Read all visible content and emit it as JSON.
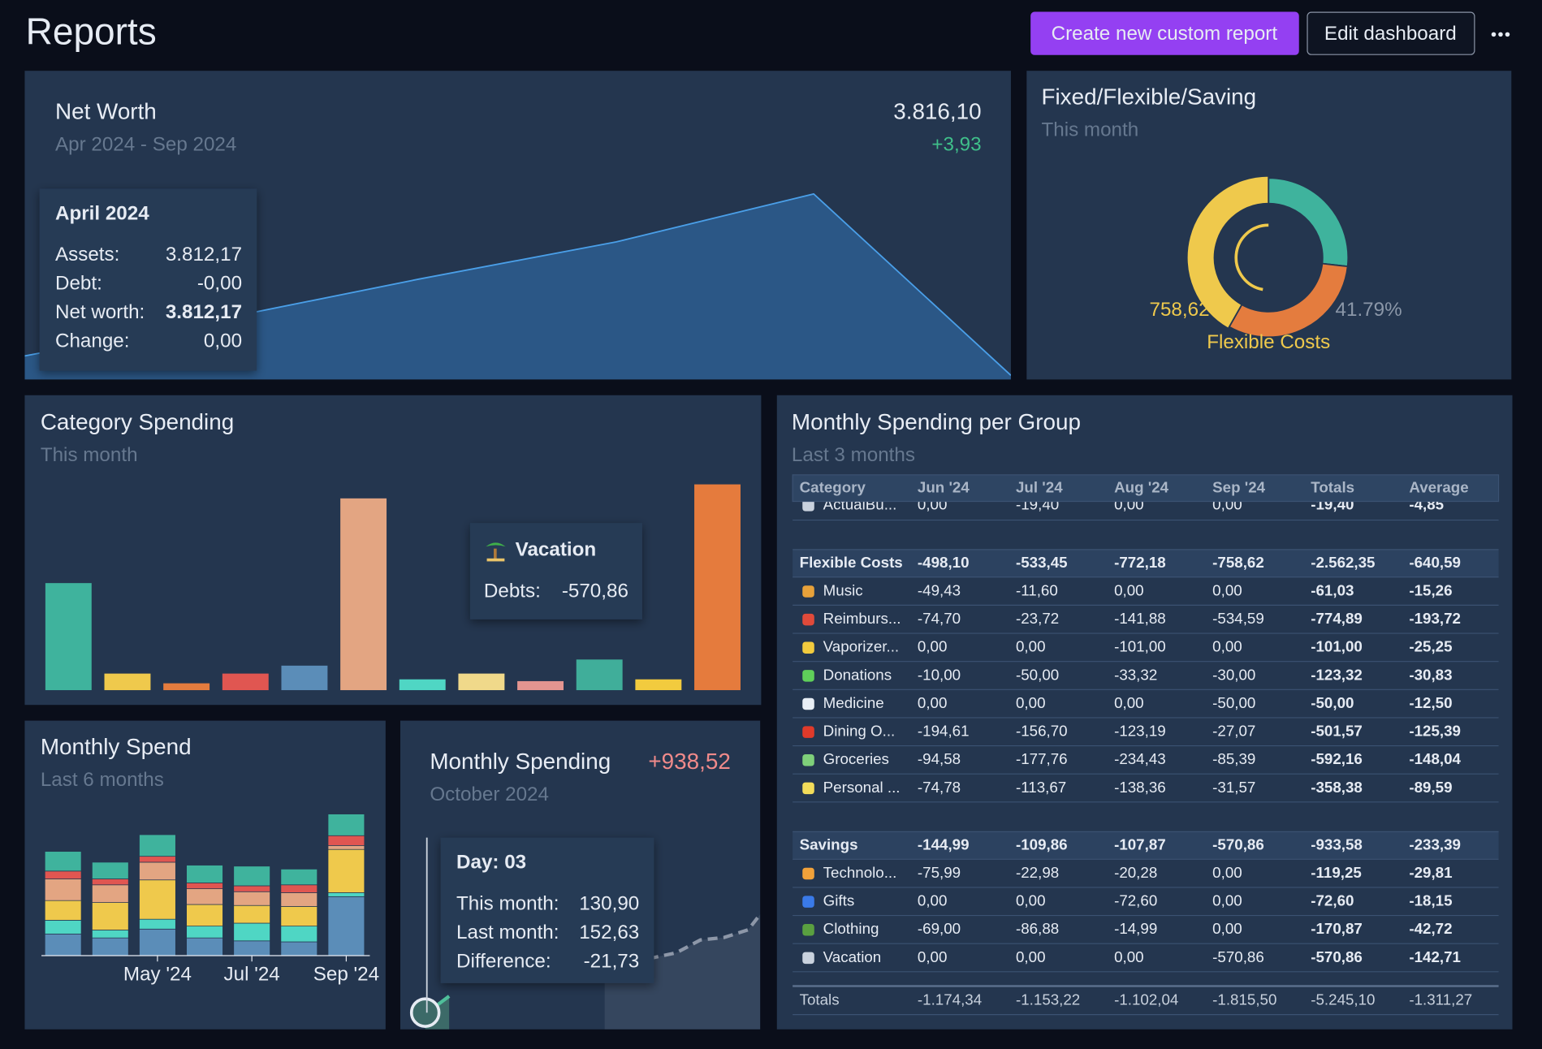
{
  "header": {
    "title": "Reports",
    "create_button": "Create new custom report",
    "edit_button": "Edit dashboard"
  },
  "net_worth": {
    "title": "Net Worth",
    "subtitle": "Apr 2024 - Sep 2024",
    "total": "3.816,10",
    "change": "+3,93",
    "chart": {
      "type": "area",
      "values": [
        3812.17,
        3813.07,
        3814.03,
        3814.93,
        3816.09,
        3811.7
      ],
      "ylim": [
        3811.6,
        3816.5
      ],
      "color": "#4a9fe8",
      "fill": "#2b5786"
    },
    "tooltip": {
      "title": "April 2024",
      "rows": [
        [
          "Assets:",
          "3.812,17"
        ],
        [
          "Debt:",
          "-0,00"
        ],
        [
          "Net worth:",
          "3.812,17"
        ],
        [
          "Change:",
          "0,00"
        ]
      ]
    }
  },
  "fixed_flexible": {
    "title": "Fixed/Flexible/Saving",
    "subtitle": "This month",
    "chart": {
      "type": "pie",
      "values": [
        486.02,
        570.86,
        758.62
      ],
      "colors": [
        "#3fb39d",
        "#e47c3e",
        "#efc94c"
      ],
      "value_labels": [
        null,
        null,
        "758,62"
      ],
      "percent_labels": [
        null,
        null,
        "41.79%"
      ],
      "labels": [
        null,
        null,
        "Flexible Costs"
      ]
    }
  },
  "category_spending": {
    "title": "Category Spending",
    "subtitle": "This month",
    "chart": {
      "type": "bar",
      "values": [
        297,
        46,
        19,
        46,
        68,
        532,
        30,
        46,
        25,
        85,
        30,
        570.86
      ],
      "ylim": [
        0,
        600
      ],
      "colors": [
        "#3fb39d",
        "#efc94c",
        "#e47c3e",
        "#e05651",
        "#5b8db8",
        "#e3a582",
        "#4fd6c4",
        "#f0d98a",
        "#e49590",
        "#40ae9a",
        "#f2cb3e",
        "#e57b3d"
      ]
    },
    "tooltip": {
      "title": "Vacation",
      "label": "Debts:",
      "value": "-570,86"
    }
  },
  "monthly_spend": {
    "title": "Monthly Spend",
    "subtitle": "Last 6 months",
    "chart": {
      "type": "bar",
      "stacked": true,
      "categories": [
        null,
        null,
        "May '24",
        null,
        "Jul '24",
        null,
        "Sep '24"
      ],
      "ylim": [
        0,
        150
      ],
      "series": [
        {
          "color": "#5b8db8",
          "values": [
            22,
            18,
            27,
            18,
            15,
            14,
            60
          ]
        },
        {
          "color": "#4fd6c4",
          "values": [
            14,
            8,
            10,
            12,
            18,
            16,
            4
          ]
        },
        {
          "color": "#efc94c",
          "values": [
            20,
            28,
            40,
            22,
            18,
            20,
            44
          ]
        },
        {
          "color": "#e3a582",
          "values": [
            22,
            18,
            18,
            16,
            14,
            14,
            4
          ]
        },
        {
          "color": "#e05651",
          "values": [
            8,
            6,
            6,
            6,
            6,
            8,
            10
          ]
        },
        {
          "color": "#3fb39d",
          "values": [
            20,
            17,
            22,
            18,
            20,
            16,
            22
          ]
        }
      ]
    }
  },
  "monthly_spending": {
    "title": "Monthly Spending",
    "change": "+938,52",
    "subtitle": "October 2024",
    "chart": {
      "type": "line",
      "xlim": [
        1,
        31
      ],
      "ylim": [
        0,
        1440
      ],
      "series": [
        {
          "color": "#8d97a8",
          "dashed": true,
          "x": [
            18,
            20,
            22,
            24,
            26,
            28,
            30,
            31
          ],
          "values": [
            420,
            480,
            560,
            600,
            700,
            720,
            780,
            900
          ]
        },
        {
          "color": "#4fbf9a",
          "x": [
            3,
            4,
            5
          ],
          "values": [
            130.9,
            190,
            260
          ]
        }
      ]
    },
    "tooltip": {
      "title": "Day: 03",
      "rows": [
        [
          "This month:",
          "130,90"
        ],
        [
          "Last month:",
          "152,63"
        ],
        [
          "Difference:",
          "-21,73"
        ]
      ]
    }
  },
  "monthly_group": {
    "title": "Monthly Spending per Group",
    "subtitle": "Last 3 months",
    "table": {
      "columns": [
        "Category",
        "Jun '24",
        "Jul '24",
        "Aug '24",
        "Sep '24",
        "Totals",
        "Average"
      ],
      "clipped_row": [
        "ActualBu...",
        "0,00",
        "-19,40",
        "0,00",
        "0,00",
        "-19,40",
        "-4,85"
      ],
      "groups": [
        {
          "header": [
            "Flexible Costs",
            "-498,10",
            "-533,45",
            "-772,18",
            "-758,62",
            "-2.562,35",
            "-640,59"
          ],
          "rows": [
            [
              "Music",
              "-49,43",
              "-11,60",
              "0,00",
              "0,00",
              "-61,03",
              "-15,26"
            ],
            [
              "Reimburs...",
              "-74,70",
              "-23,72",
              "-141,88",
              "-534,59",
              "-774,89",
              "-193,72"
            ],
            [
              "Vaporizer...",
              "0,00",
              "0,00",
              "-101,00",
              "0,00",
              "-101,00",
              "-25,25"
            ],
            [
              "Donations",
              "-10,00",
              "-50,00",
              "-33,32",
              "-30,00",
              "-123,32",
              "-30,83"
            ],
            [
              "Medicine",
              "0,00",
              "0,00",
              "0,00",
              "-50,00",
              "-50,00",
              "-12,50"
            ],
            [
              "Dining O...",
              "-194,61",
              "-156,70",
              "-123,19",
              "-27,07",
              "-501,57",
              "-125,39"
            ],
            [
              "Groceries",
              "-94,58",
              "-177,76",
              "-234,43",
              "-85,39",
              "-592,16",
              "-148,04"
            ],
            [
              "Personal ...",
              "-74,78",
              "-113,67",
              "-138,36",
              "-31,57",
              "-358,38",
              "-89,59"
            ]
          ]
        },
        {
          "header": [
            "Savings",
            "-144,99",
            "-109,86",
            "-107,87",
            "-570,86",
            "-933,58",
            "-233,39"
          ],
          "rows": [
            [
              "Technolo...",
              "-75,99",
              "-22,98",
              "-20,28",
              "0,00",
              "-119,25",
              "-29,81"
            ],
            [
              "Gifts",
              "0,00",
              "0,00",
              "-72,60",
              "0,00",
              "-72,60",
              "-18,15"
            ],
            [
              "Clothing",
              "-69,00",
              "-86,88",
              "-14,99",
              "0,00",
              "-170,87",
              "-42,72"
            ],
            [
              "Vacation",
              "0,00",
              "0,00",
              "0,00",
              "-570,86",
              "-570,86",
              "-142,71"
            ]
          ]
        }
      ],
      "totals": [
        "Totals",
        "-1.174,34",
        "-1.153,22",
        "-1.102,04",
        "-1.815,50",
        "-5.245,10",
        "-1.311,27"
      ]
    }
  }
}
